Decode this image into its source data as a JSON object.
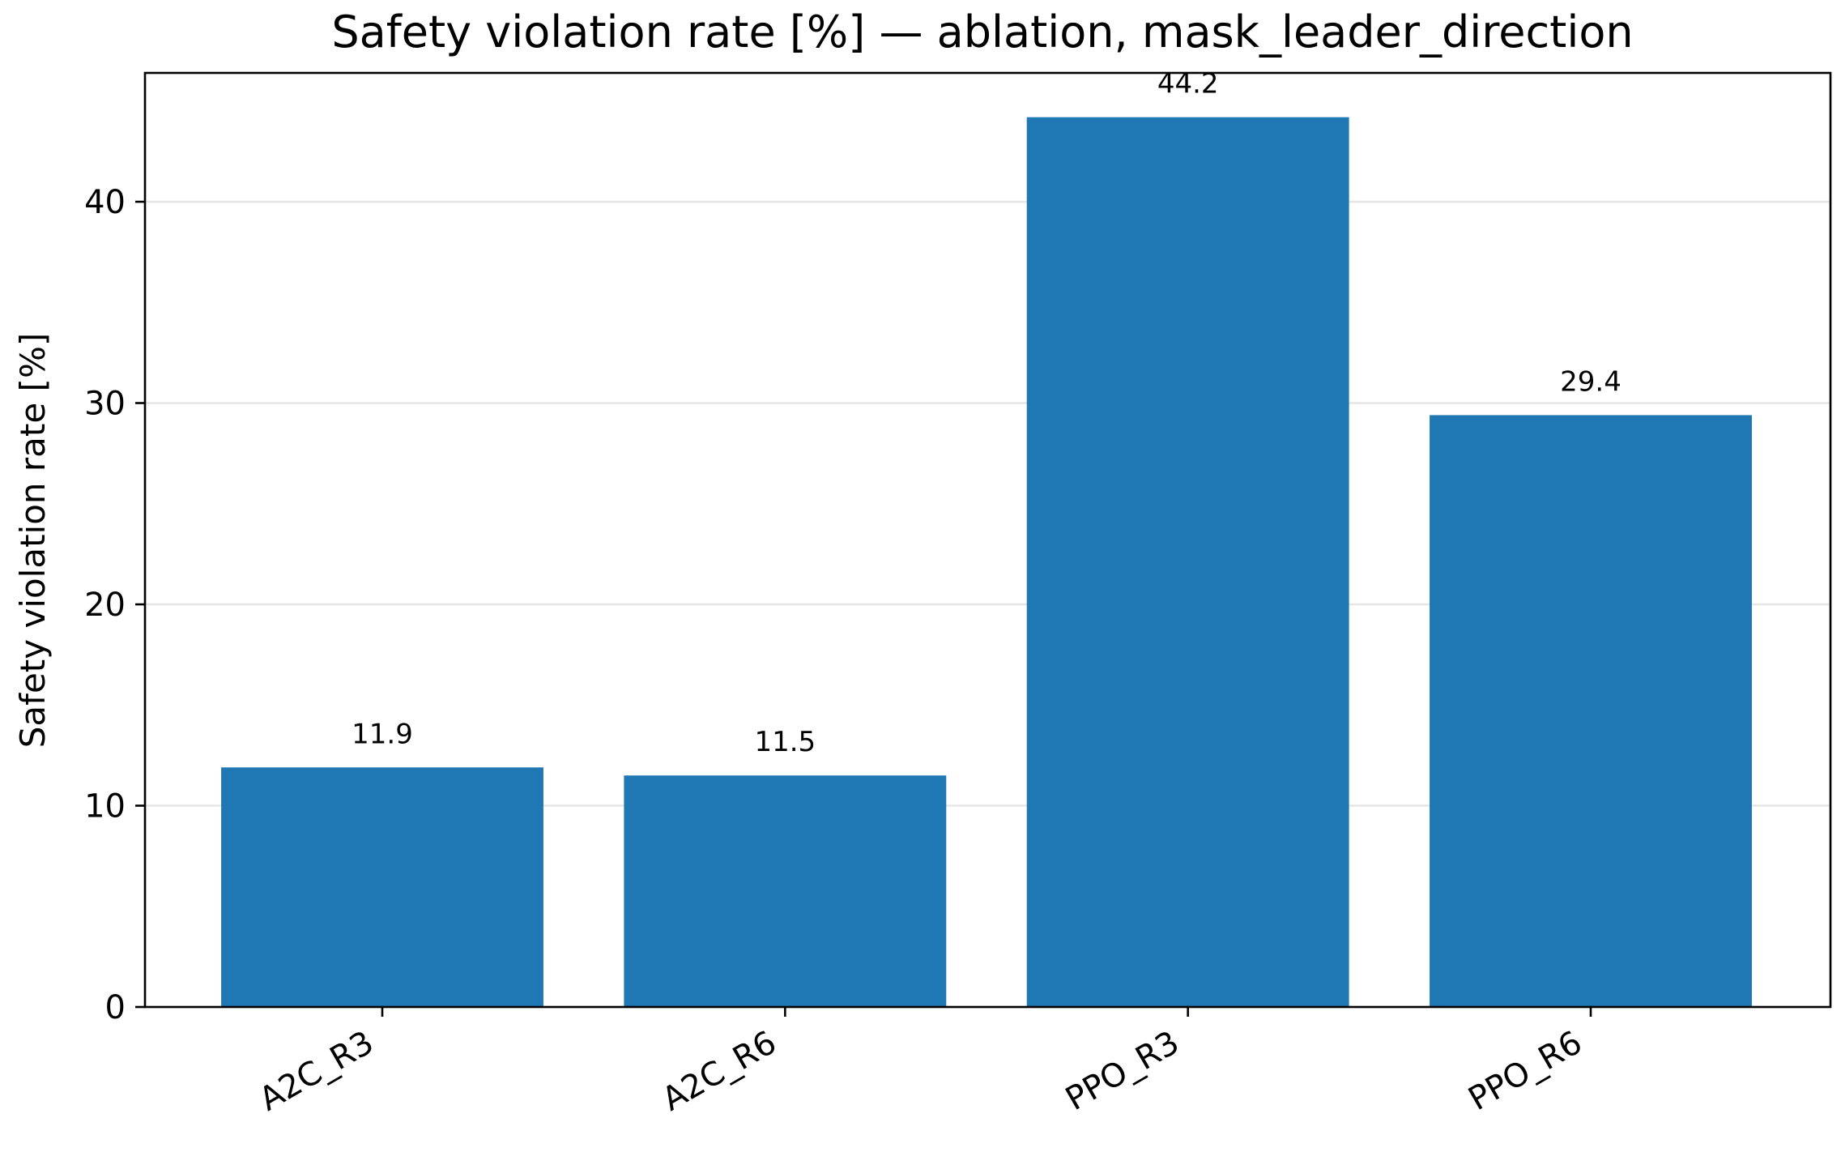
{
  "chart_data": {
    "type": "bar",
    "title": "Safety violation rate [%] — ablation, mask_leader_direction",
    "xlabel": "",
    "ylabel": "Safety violation rate [%]",
    "categories": [
      "A2C_R3",
      "A2C_R6",
      "PPO_R3",
      "PPO_R6"
    ],
    "values": [
      11.9,
      11.5,
      44.2,
      29.4
    ],
    "value_labels": [
      "11.9",
      "11.5",
      "44.2",
      "29.4"
    ],
    "ylim": [
      0,
      46.4
    ],
    "yticks": [
      0,
      10,
      20,
      30,
      40
    ],
    "ytick_labels": [
      "0",
      "10",
      "20",
      "30",
      "40"
    ],
    "grid": "horizontal",
    "legend": "none",
    "bar_color": "#1f77b4",
    "grid_color": "#e6e6e6",
    "axis_color": "#000000"
  }
}
